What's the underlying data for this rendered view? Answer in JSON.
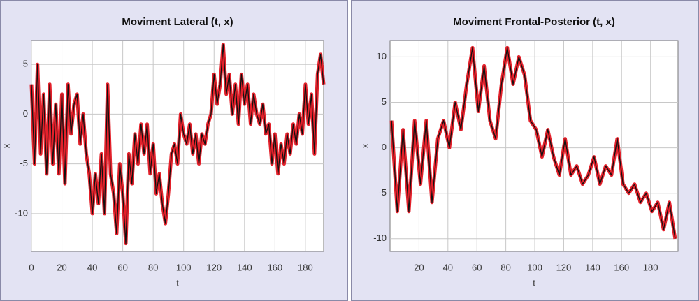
{
  "chart_data": [
    {
      "type": "line",
      "title": "Moviment Lateral (t, x)",
      "x_label": "t",
      "y_label": "x",
      "xlim": [
        0,
        192
      ],
      "ylim": [
        -13.8,
        7.4
      ],
      "xticks": [
        0,
        20,
        40,
        60,
        80,
        100,
        120,
        140,
        160,
        180
      ],
      "yticks": [
        -10,
        -5,
        0,
        5
      ],
      "grid": true,
      "x": [
        0,
        2,
        4,
        6,
        8,
        10,
        12,
        14,
        16,
        18,
        20,
        22,
        24,
        26,
        28,
        30,
        32,
        34,
        36,
        38,
        40,
        42,
        44,
        46,
        48,
        50,
        52,
        54,
        56,
        58,
        60,
        62,
        64,
        66,
        68,
        70,
        72,
        74,
        76,
        78,
        80,
        82,
        84,
        86,
        88,
        90,
        92,
        94,
        96,
        98,
        100,
        102,
        104,
        106,
        108,
        110,
        112,
        114,
        116,
        118,
        120,
        122,
        124,
        126,
        128,
        130,
        132,
        134,
        136,
        138,
        140,
        142,
        144,
        146,
        148,
        150,
        152,
        154,
        156,
        158,
        160,
        162,
        164,
        166,
        168,
        170,
        172,
        174,
        176,
        178,
        180,
        182,
        184,
        186,
        188,
        190,
        192
      ],
      "series": [
        {
          "name": "x",
          "color": "#e3212b",
          "values": [
            3,
            -5,
            5,
            -4,
            2,
            -6,
            3,
            -5,
            1,
            -6,
            2,
            -7,
            3,
            -2,
            1,
            2,
            -3,
            0,
            -4,
            -6,
            -10,
            -6,
            -9,
            -4,
            -10,
            3,
            -6,
            -8,
            -12,
            -5,
            -8,
            -13,
            -4,
            -7,
            -2,
            -5,
            -1,
            -4,
            -1,
            -6,
            -3,
            -8,
            -6,
            -9,
            -11,
            -8,
            -4,
            -3,
            -5,
            0,
            -2,
            -3,
            -1,
            -4,
            -2,
            -5,
            -2,
            -3,
            -1,
            0,
            4,
            1,
            3,
            7,
            2,
            4,
            0,
            3,
            -1,
            4,
            1,
            3,
            -1,
            2,
            0,
            -1,
            1,
            -2,
            -1,
            -5,
            -2,
            -6,
            -3,
            -5,
            -2,
            -4,
            -1,
            -3,
            0,
            -2,
            3,
            -1,
            2,
            -4,
            4,
            6,
            3
          ]
        }
      ]
    },
    {
      "type": "line",
      "title": "Moviment Frontal-Posterior (t, x)",
      "x_label": "t",
      "y_label": "x",
      "xlim": [
        0,
        199
      ],
      "ylim": [
        -11.4,
        11.8
      ],
      "xticks": [
        20,
        40,
        60,
        80,
        100,
        120,
        140,
        160,
        180
      ],
      "yticks": [
        -10,
        -5,
        0,
        5,
        10
      ],
      "grid": true,
      "x": [
        1,
        5,
        9,
        13,
        17,
        21,
        25,
        29,
        33,
        37,
        41,
        45,
        49,
        53,
        57,
        61,
        65,
        69,
        73,
        77,
        81,
        85,
        89,
        93,
        97,
        101,
        105,
        109,
        113,
        117,
        121,
        125,
        129,
        133,
        137,
        141,
        145,
        149,
        153,
        157,
        161,
        165,
        169,
        173,
        177,
        181,
        185,
        189,
        193,
        197
      ],
      "series": [
        {
          "name": "x",
          "color": "#e3212b",
          "values": [
            3,
            -7,
            2,
            -7,
            3,
            -4,
            3,
            -6,
            1,
            3,
            0,
            5,
            2,
            7,
            11,
            4,
            9,
            3,
            1,
            7,
            11,
            7,
            10,
            8,
            3,
            2,
            -1,
            2,
            -1,
            -3,
            1,
            -3,
            -2,
            -4,
            -3,
            -1,
            -4,
            -2,
            -3,
            1,
            -4,
            -5,
            -4,
            -6,
            -5,
            -7,
            -6,
            -9,
            -6,
            -10
          ]
        }
      ]
    }
  ]
}
